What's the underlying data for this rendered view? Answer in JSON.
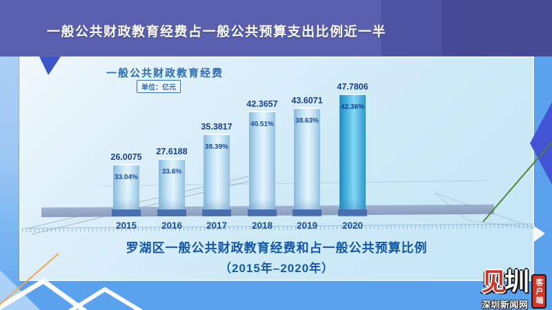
{
  "header": {
    "title": "一般公共财政教育经费占一般公共预算支出比例近一半"
  },
  "chart": {
    "title": "一般公共财政教育经费",
    "unit_label": "单位：亿元",
    "bottom_title_line1": "罗湖区一般公共财政教育经费和占一般公共预算比例",
    "bottom_title_line2": "（2015年–2020年）"
  },
  "chart_data": {
    "type": "bar",
    "title": "一般公共财政教育经费",
    "unit": "亿元",
    "categories": [
      "2015",
      "2016",
      "2017",
      "2018",
      "2019",
      "2020"
    ],
    "series": [
      {
        "name": "一般公共财政教育经费（亿元）",
        "values": [
          26.0075,
          27.6188,
          35.3817,
          42.3657,
          43.6071,
          47.7806
        ]
      },
      {
        "name": "占一般公共预算比例",
        "values": [
          "33.04%",
          "33.6%",
          "38.39%",
          "40.51%",
          "38.63%",
          "42.36%"
        ]
      }
    ],
    "highlight_category": "2020",
    "legend": "none",
    "grid": "off"
  },
  "watermark": {
    "brand_red_char": "见",
    "brand_white_char": "圳",
    "site_name": "深圳新闻网",
    "ribbon": "客户端"
  },
  "colors": {
    "page_bg": "#5ba2ee",
    "header_left": "#5a5fae",
    "header_mid": "#4d52a0",
    "header_right": "#454a92",
    "panel_bg": "#d6ecf8",
    "bar_edge": "#8fc2e2",
    "bar_center": "#e2f4fb",
    "bar_edge2": "#9ccbe8",
    "bar_hl_edge": "#1f8fc6",
    "bar_hl_center": "#86d5f2",
    "label_blue": "#1c3f94",
    "title_blue": "#1257ac",
    "green_line": "#55822f",
    "orange_line": "#f2a44e",
    "logo_red": "#d03528"
  }
}
